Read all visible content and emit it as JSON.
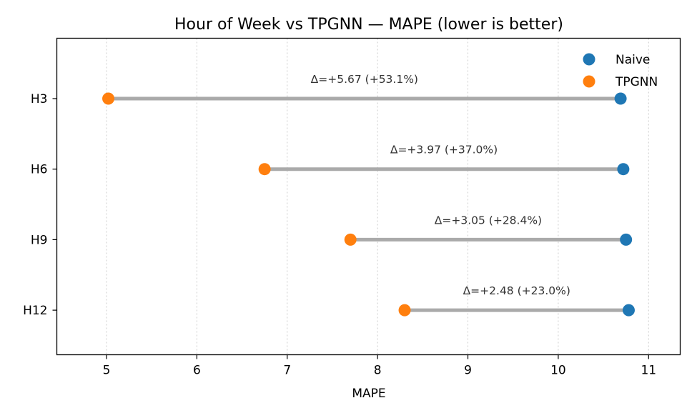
{
  "chart_data": {
    "type": "dumbbell",
    "title": "Hour of Week vs TPGNN — MAPE (lower is better)",
    "xlabel": "MAPE",
    "ylabel": "",
    "xlim": [
      4.45,
      11.35
    ],
    "xticks": [
      5,
      6,
      7,
      8,
      9,
      10,
      11
    ],
    "grid": "x-dotted",
    "legend_position": "top-right",
    "categories": [
      "H3",
      "H6",
      "H9",
      "H12"
    ],
    "series": [
      {
        "name": "Naive",
        "color": "#1f77b4",
        "values": [
          10.69,
          10.72,
          10.75,
          10.78
        ]
      },
      {
        "name": "TPGNN",
        "color": "#ff7f0e",
        "values": [
          5.02,
          6.75,
          7.7,
          8.3
        ]
      }
    ],
    "annotations": [
      "Δ=+5.67 (+53.1%)",
      "Δ=+3.97 (+37.0%)",
      "Δ=+3.05 (+28.4%)",
      "Δ=+2.48 (+23.0%)"
    ],
    "connector_color": "#aaaaaa"
  }
}
